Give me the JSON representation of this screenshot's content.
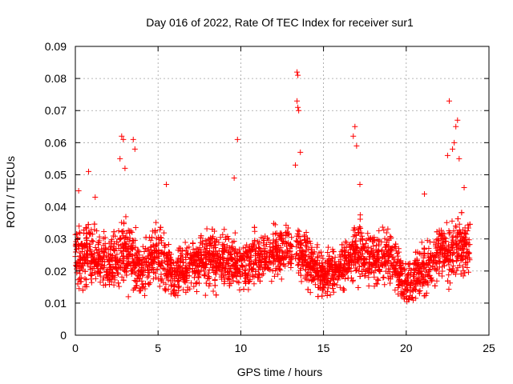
{
  "chart_data": {
    "type": "scatter",
    "title": "Day 016 of 2022, Rate Of TEC Index for receiver sur1",
    "xlabel": "GPS time / hours",
    "ylabel": "ROTI / TECUs",
    "xlim": [
      0,
      25
    ],
    "ylim": [
      0,
      0.09
    ],
    "xticks": [
      "0",
      "5",
      "10",
      "15",
      "20",
      "25"
    ],
    "yticks": [
      "0",
      "0.01",
      "0.02",
      "0.03",
      "0.04",
      "0.05",
      "0.06",
      "0.07",
      "0.08",
      "0.09"
    ],
    "grid": true,
    "marker": "+",
    "color": "#ff0000",
    "gap_hours": [
      13.1,
      13.3
    ],
    "series": [
      {
        "values_envelope": [
          {
            "x": 0.0,
            "mean": 0.024,
            "spread": 0.008
          },
          {
            "x": 1.0,
            "mean": 0.025,
            "spread": 0.009
          },
          {
            "x": 2.0,
            "mean": 0.022,
            "spread": 0.008
          },
          {
            "x": 3.0,
            "mean": 0.026,
            "spread": 0.01
          },
          {
            "x": 4.0,
            "mean": 0.02,
            "spread": 0.007
          },
          {
            "x": 5.0,
            "mean": 0.026,
            "spread": 0.009
          },
          {
            "x": 6.0,
            "mean": 0.018,
            "spread": 0.006
          },
          {
            "x": 7.0,
            "mean": 0.022,
            "spread": 0.007
          },
          {
            "x": 8.0,
            "mean": 0.025,
            "spread": 0.008
          },
          {
            "x": 9.0,
            "mean": 0.024,
            "spread": 0.008
          },
          {
            "x": 10.0,
            "mean": 0.022,
            "spread": 0.007
          },
          {
            "x": 11.0,
            "mean": 0.024,
            "spread": 0.007
          },
          {
            "x": 12.0,
            "mean": 0.025,
            "spread": 0.007
          },
          {
            "x": 13.0,
            "mean": 0.028,
            "spread": 0.008
          },
          {
            "x": 14.0,
            "mean": 0.024,
            "spread": 0.007
          },
          {
            "x": 15.0,
            "mean": 0.018,
            "spread": 0.006
          },
          {
            "x": 16.0,
            "mean": 0.021,
            "spread": 0.006
          },
          {
            "x": 17.0,
            "mean": 0.026,
            "spread": 0.008
          },
          {
            "x": 18.0,
            "mean": 0.024,
            "spread": 0.008
          },
          {
            "x": 19.0,
            "mean": 0.024,
            "spread": 0.008
          },
          {
            "x": 20.0,
            "mean": 0.016,
            "spread": 0.006
          },
          {
            "x": 21.0,
            "mean": 0.02,
            "spread": 0.007
          },
          {
            "x": 22.0,
            "mean": 0.026,
            "spread": 0.008
          },
          {
            "x": 23.0,
            "mean": 0.027,
            "spread": 0.009
          },
          {
            "x": 23.8,
            "mean": 0.028,
            "spread": 0.009
          }
        ],
        "highlights": [
          {
            "x": 2.8,
            "y": 0.062
          },
          {
            "x": 2.9,
            "y": 0.061
          },
          {
            "x": 3.5,
            "y": 0.061
          },
          {
            "x": 3.6,
            "y": 0.058
          },
          {
            "x": 2.7,
            "y": 0.055
          },
          {
            "x": 3.0,
            "y": 0.052
          },
          {
            "x": 0.8,
            "y": 0.051
          },
          {
            "x": 9.8,
            "y": 0.061
          },
          {
            "x": 9.6,
            "y": 0.049
          },
          {
            "x": 13.4,
            "y": 0.082
          },
          {
            "x": 13.45,
            "y": 0.081
          },
          {
            "x": 13.4,
            "y": 0.073
          },
          {
            "x": 13.45,
            "y": 0.071
          },
          {
            "x": 13.5,
            "y": 0.07
          },
          {
            "x": 13.6,
            "y": 0.057
          },
          {
            "x": 13.3,
            "y": 0.053
          },
          {
            "x": 16.9,
            "y": 0.065
          },
          {
            "x": 16.8,
            "y": 0.062
          },
          {
            "x": 17.0,
            "y": 0.059
          },
          {
            "x": 17.2,
            "y": 0.047
          },
          {
            "x": 22.6,
            "y": 0.073
          },
          {
            "x": 23.1,
            "y": 0.067
          },
          {
            "x": 23.0,
            "y": 0.065
          },
          {
            "x": 22.9,
            "y": 0.06
          },
          {
            "x": 22.8,
            "y": 0.058
          },
          {
            "x": 22.5,
            "y": 0.056
          },
          {
            "x": 23.2,
            "y": 0.055
          },
          {
            "x": 5.5,
            "y": 0.047
          },
          {
            "x": 1.2,
            "y": 0.043
          },
          {
            "x": 0.2,
            "y": 0.045
          },
          {
            "x": 21.1,
            "y": 0.044
          },
          {
            "x": 23.5,
            "y": 0.046
          }
        ]
      }
    ]
  }
}
